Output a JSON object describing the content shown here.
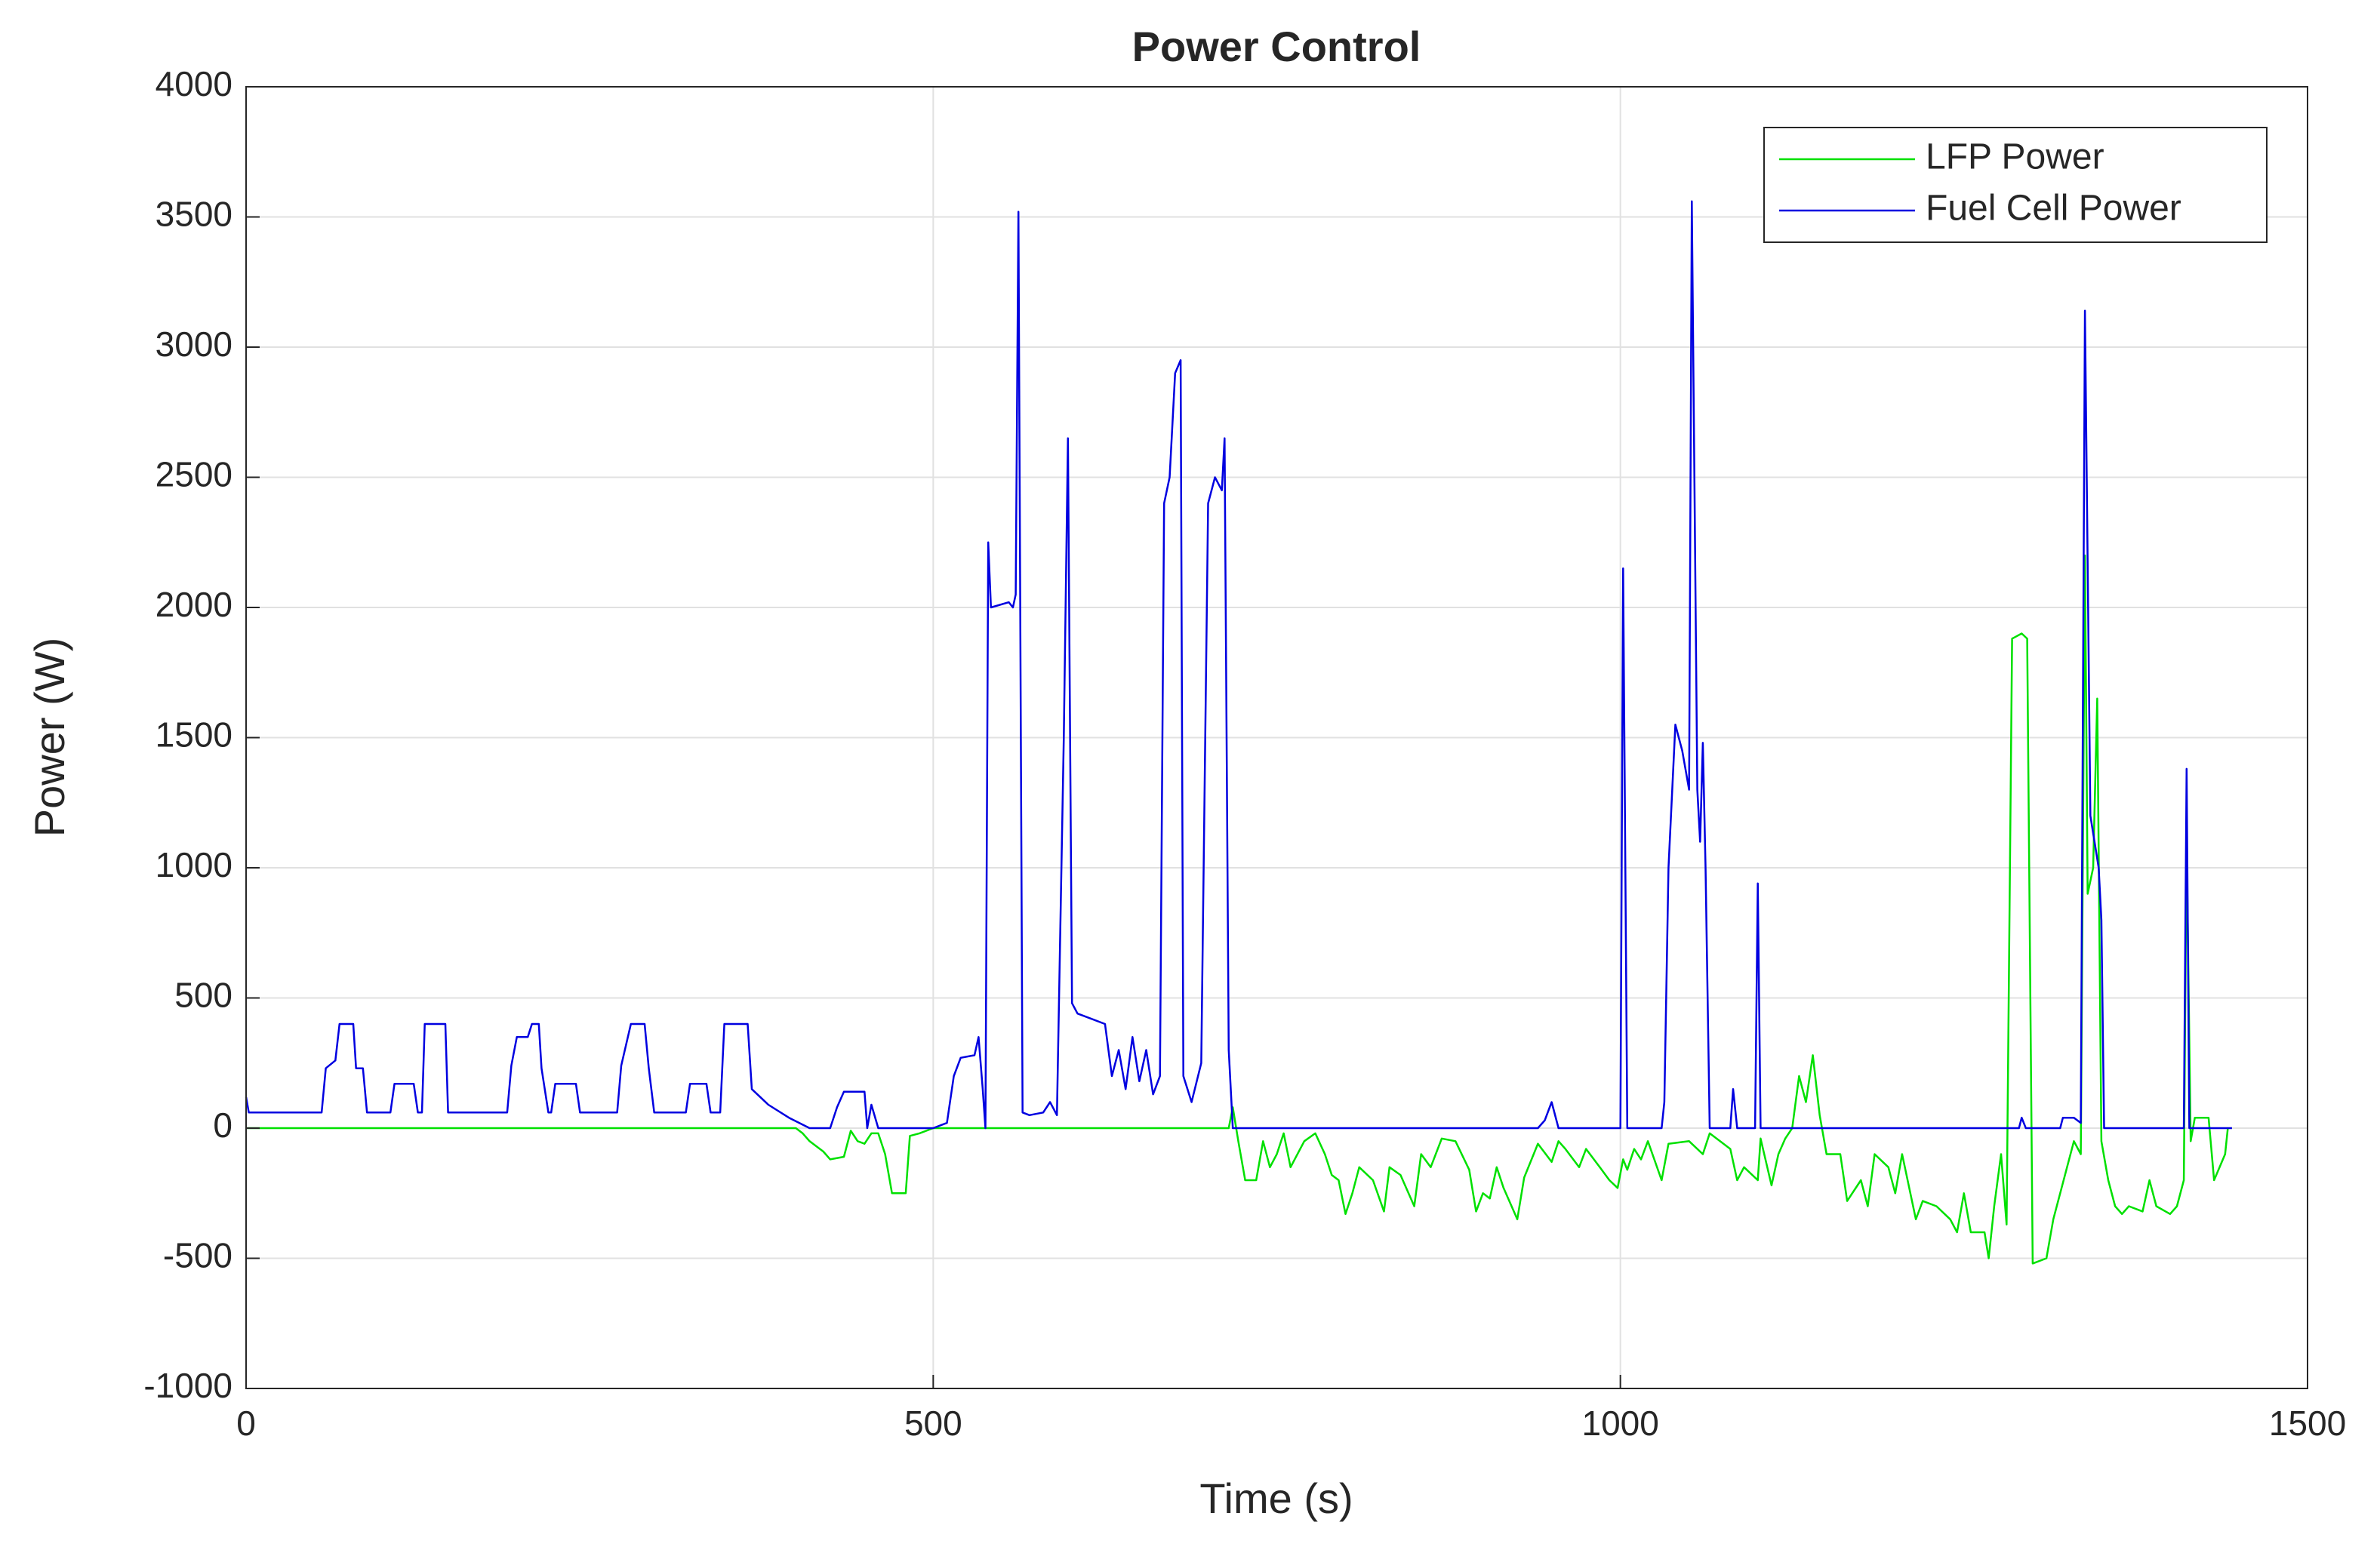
{
  "chart_data": {
    "type": "line",
    "title": "Power Control",
    "x_label": "Time (s)",
    "y_label": "Power (W)",
    "xlim": [
      0,
      1500
    ],
    "ylim": [
      -1000,
      4000
    ],
    "xticks": [
      0,
      500,
      1000,
      1500
    ],
    "yticks": [
      -1000,
      -500,
      0,
      500,
      1000,
      1500,
      2000,
      2500,
      3000,
      3500,
      4000
    ],
    "grid": true,
    "legend": "northeast",
    "series": [
      {
        "name": "LFP Power",
        "color": "#00e000",
        "x": [
          0,
          400,
          405,
          410,
          420,
          425,
          435,
          440,
          445,
          450,
          455,
          460,
          465,
          470,
          475,
          480,
          483,
          490,
          500,
          537,
          540,
          715,
          718,
          722,
          727,
          735,
          740,
          745,
          750,
          755,
          760,
          770,
          778,
          785,
          790,
          795,
          800,
          805,
          810,
          820,
          828,
          832,
          840,
          850,
          855,
          862,
          870,
          880,
          890,
          895,
          900,
          905,
          910,
          915,
          925,
          930,
          940,
          950,
          955,
          960,
          970,
          975,
          985,
          992,
          998,
          1002,
          1005,
          1010,
          1015,
          1020,
          1030,
          1035,
          1050,
          1060,
          1065,
          1080,
          1085,
          1090,
          1100,
          1102,
          1110,
          1115,
          1120,
          1125,
          1130,
          1135,
          1140,
          1145,
          1150,
          1160,
          1165,
          1175,
          1180,
          1185,
          1195,
          1200,
          1205,
          1215,
          1220,
          1230,
          1240,
          1245,
          1250,
          1255,
          1265,
          1268,
          1272,
          1277,
          1281,
          1285,
          1292,
          1296,
          1300,
          1310,
          1315,
          1320,
          1325,
          1330,
          1335,
          1338,
          1340,
          1344,
          1347,
          1350,
          1355,
          1360,
          1365,
          1370,
          1380,
          1385,
          1390,
          1400,
          1405,
          1410,
          1412,
          1415,
          1418,
          1428,
          1432,
          1436,
          1440,
          1442
        ],
        "values": [
          0,
          0,
          -20,
          -50,
          -90,
          -120,
          -110,
          -10,
          -50,
          -60,
          -20,
          -20,
          -100,
          -250,
          -250,
          -250,
          -30,
          -20,
          0,
          0,
          0,
          0,
          80,
          -50,
          -200,
          -200,
          -50,
          -150,
          -100,
          -20,
          -150,
          -50,
          -20,
          -100,
          -180,
          -200,
          -330,
          -250,
          -150,
          -200,
          -320,
          -150,
          -180,
          -300,
          -100,
          -150,
          -40,
          -50,
          -160,
          -320,
          -250,
          -270,
          -150,
          -230,
          -350,
          -190,
          -60,
          -130,
          -50,
          -80,
          -150,
          -80,
          -150,
          -200,
          -230,
          -120,
          -160,
          -80,
          -120,
          -50,
          -200,
          -60,
          -50,
          -100,
          -20,
          -80,
          -200,
          -150,
          -200,
          -40,
          -220,
          -100,
          -40,
          0,
          200,
          100,
          280,
          50,
          -100,
          -100,
          -280,
          -200,
          -300,
          -100,
          -150,
          -250,
          -100,
          -350,
          -280,
          -300,
          -350,
          -400,
          -250,
          -400,
          -400,
          -500,
          -300,
          -100,
          -370,
          1880,
          1900,
          1880,
          -520,
          -500,
          -350,
          -250,
          -150,
          -50,
          -100,
          2200,
          900,
          1000,
          1650,
          -50,
          -200,
          -300,
          -330,
          -300,
          -320,
          -200,
          -300,
          -330,
          -300,
          -200,
          1100,
          -50,
          40,
          40,
          -200,
          -150,
          -100,
          0
        ]
      },
      {
        "name": "Fuel Cell Power",
        "color": "#0000e0",
        "x": [
          0,
          2,
          50,
          55,
          58,
          65,
          68,
          78,
          80,
          85,
          88,
          105,
          108,
          122,
          125,
          128,
          130,
          145,
          147,
          190,
          193,
          197,
          205,
          208,
          213,
          215,
          220,
          222,
          225,
          240,
          243,
          270,
          273,
          280,
          290,
          293,
          297,
          320,
          323,
          335,
          338,
          345,
          348,
          365,
          368,
          380,
          395,
          410,
          425,
          430,
          435,
          450,
          452,
          455,
          460,
          500,
          510,
          515,
          520,
          530,
          533,
          536,
          538,
          540,
          542,
          555,
          558,
          560,
          562,
          565,
          570,
          580,
          585,
          590,
          595,
          598,
          601,
          605,
          615,
          625,
          630,
          635,
          640,
          645,
          650,
          655,
          660,
          665,
          668,
          672,
          676,
          680,
          682,
          688,
          695,
          700,
          705,
          710,
          712,
          715,
          718,
          940,
          945,
          950,
          955,
          1000,
          1002,
          1005,
          1030,
          1032,
          1035,
          1040,
          1045,
          1050,
          1052,
          1056,
          1058,
          1060,
          1062,
          1065,
          1080,
          1082,
          1085,
          1098,
          1100,
          1102,
          1290,
          1292,
          1295,
          1320,
          1322,
          1330,
          1335,
          1338,
          1342,
          1345,
          1348,
          1350,
          1352,
          1410,
          1412,
          1414,
          1445
        ],
        "values": [
          120,
          60,
          60,
          60,
          230,
          260,
          400,
          400,
          230,
          230,
          60,
          60,
          170,
          170,
          60,
          60,
          400,
          400,
          60,
          60,
          240,
          350,
          350,
          400,
          400,
          230,
          60,
          60,
          170,
          170,
          60,
          60,
          240,
          400,
          400,
          230,
          60,
          60,
          170,
          170,
          60,
          60,
          400,
          400,
          150,
          90,
          40,
          0,
          0,
          80,
          140,
          140,
          0,
          90,
          0,
          0,
          20,
          200,
          270,
          280,
          350,
          150,
          0,
          2250,
          2000,
          2020,
          2000,
          2050,
          3520,
          60,
          50,
          60,
          100,
          50,
          1500,
          2650,
          480,
          440,
          420,
          400,
          200,
          300,
          150,
          350,
          180,
          300,
          130,
          200,
          2400,
          2500,
          2900,
          2950,
          200,
          100,
          250,
          2400,
          2500,
          2450,
          2650,
          300,
          0,
          0,
          30,
          100,
          0,
          0,
          2150,
          0,
          0,
          100,
          1000,
          1550,
          1450,
          1300,
          3560,
          1300,
          1100,
          1480,
          1000,
          0,
          0,
          150,
          0,
          0,
          940,
          0,
          0,
          40,
          0,
          0,
          40,
          40,
          20,
          3140,
          1200,
          1100,
          1000,
          800,
          0,
          0,
          1380,
          0,
          0
        ]
      }
    ]
  }
}
